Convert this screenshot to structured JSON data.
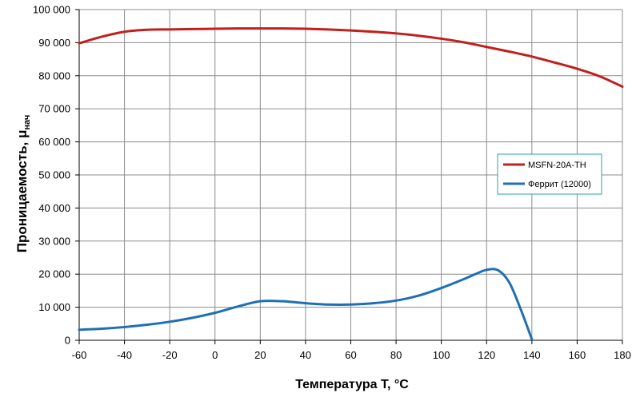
{
  "chart_data": {
    "type": "line",
    "xlabel": "Температура T, °C",
    "ylabel_main": "Проницаемость, μ",
    "ylabel_sub": "нач",
    "xlim": [
      -60,
      180
    ],
    "ylim": [
      0,
      100000
    ],
    "x_ticks": [
      -60,
      -40,
      -20,
      0,
      20,
      40,
      60,
      80,
      100,
      120,
      140,
      160,
      180
    ],
    "y_ticks": [
      0,
      10000,
      20000,
      30000,
      40000,
      50000,
      60000,
      70000,
      80000,
      90000,
      100000
    ],
    "y_tick_labels": [
      "0",
      "10 000",
      "20 000",
      "30 000",
      "40 000",
      "50 000",
      "60 000",
      "70 000",
      "80 000",
      "90 000",
      "100 000"
    ],
    "grid": true,
    "legend_position": "right",
    "series": [
      {
        "name": "MSFN-20A-TH",
        "color": "#c0201e",
        "x": [
          -60,
          -50,
          -40,
          -30,
          -20,
          -10,
          0,
          10,
          20,
          30,
          40,
          50,
          60,
          70,
          80,
          90,
          100,
          110,
          120,
          130,
          140,
          150,
          160,
          170,
          180
        ],
        "y": [
          89800,
          91800,
          93300,
          93900,
          94000,
          94100,
          94200,
          94300,
          94300,
          94300,
          94200,
          94000,
          93700,
          93300,
          92800,
          92100,
          91200,
          90100,
          88700,
          87300,
          85800,
          84000,
          82100,
          79800,
          76700
        ]
      },
      {
        "name": "Феррит (12000)",
        "color": "#1f6fb4",
        "x": [
          -60,
          -50,
          -40,
          -30,
          -20,
          -10,
          0,
          10,
          20,
          30,
          40,
          50,
          60,
          70,
          80,
          90,
          100,
          110,
          115,
          120,
          125,
          130,
          135,
          140
        ],
        "y": [
          3200,
          3500,
          4000,
          4700,
          5600,
          6800,
          8300,
          10200,
          11800,
          11800,
          11200,
          10800,
          10800,
          11200,
          12000,
          13500,
          15800,
          18500,
          20000,
          21300,
          21200,
          17500,
          9500,
          300
        ]
      }
    ]
  }
}
